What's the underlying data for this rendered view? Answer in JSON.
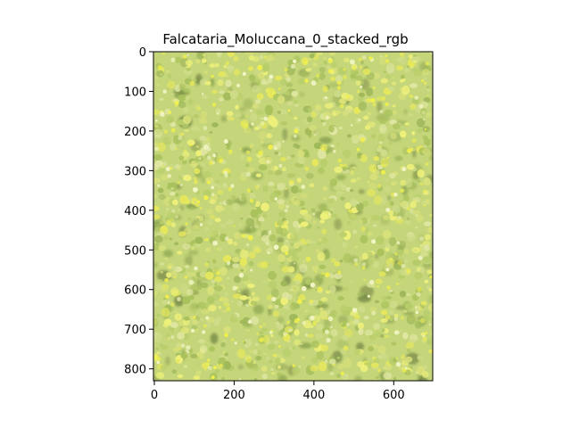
{
  "figure": {
    "title": "Falcataria_Moluccana_0_stacked_rgb"
  },
  "image_axes": {
    "x_ticks": [
      0,
      200,
      400,
      600
    ],
    "y_ticks": [
      0,
      100,
      200,
      300,
      400,
      500,
      600,
      700,
      800
    ],
    "x_range": [
      0,
      700
    ],
    "y_range": [
      0,
      830
    ],
    "y_inverted": true
  },
  "canopy": {
    "base_color": "#c5d67a",
    "leaf_colors": [
      "#d8e07a",
      "#e6e85c",
      "#b7cd6a",
      "#cfdc8a",
      "#a9c25c",
      "#eef07a",
      "#9fb85a",
      "#dfe6a2"
    ],
    "shadow_colors": [
      "#6f8a3c",
      "#5a6d34",
      "#86a04a"
    ]
  }
}
